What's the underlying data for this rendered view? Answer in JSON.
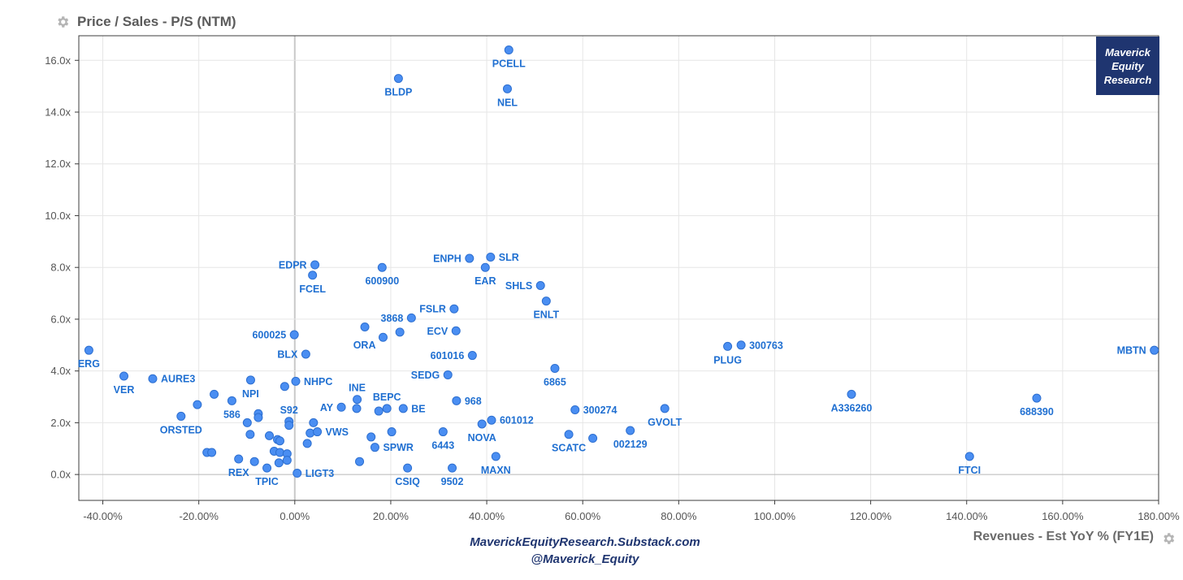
{
  "chart_data": {
    "type": "scatter",
    "title": "Price / Sales - P/S (NTM)",
    "xlabel": "Revenues - Est YoY % (FY1E)",
    "ylabel": "",
    "xlim": [
      -45,
      180
    ],
    "ylim": [
      -1,
      16.95
    ],
    "x_ticks": [
      -40,
      -20,
      0,
      20,
      40,
      60,
      80,
      100,
      120,
      140,
      160,
      180
    ],
    "x_tick_labels": [
      "-40.00%",
      "-20.00%",
      "0.00%",
      "20.00%",
      "40.00%",
      "60.00%",
      "80.00%",
      "100.00%",
      "120.00%",
      "140.00%",
      "160.00%",
      "180.00%"
    ],
    "y_ticks": [
      0,
      2,
      4,
      6,
      8,
      10,
      12,
      14,
      16
    ],
    "y_tick_labels": [
      "0.0x",
      "2.0x",
      "4.0x",
      "6.0x",
      "8.0x",
      "10.0x",
      "12.0x",
      "14.0x",
      "16.0x"
    ],
    "grid": true,
    "point_color": "#4a8ef2",
    "label_color": "#1f6fd1",
    "points": [
      {
        "label": "PCELL",
        "x": 44.6,
        "y": 16.4,
        "pos": "below"
      },
      {
        "label": "BLDP",
        "x": 21.6,
        "y": 15.3,
        "pos": "below"
      },
      {
        "label": "NEL",
        "x": 44.3,
        "y": 14.9,
        "pos": "below"
      },
      {
        "label": "ERG",
        "x": -42.9,
        "y": 4.8,
        "pos": "below"
      },
      {
        "label": "VER",
        "x": -35.6,
        "y": 3.8,
        "pos": "below"
      },
      {
        "label": "AURE3",
        "x": -29.6,
        "y": 3.7,
        "pos": "right"
      },
      {
        "label": "ORSTED",
        "x": -23.7,
        "y": 2.25,
        "pos": "below"
      },
      {
        "label": "",
        "x": -20.3,
        "y": 2.7,
        "pos": "none"
      },
      {
        "label": "",
        "x": -16.8,
        "y": 3.1,
        "pos": "none"
      },
      {
        "label": "",
        "x": -18.3,
        "y": 0.85,
        "pos": "none"
      },
      {
        "label": "",
        "x": -17.3,
        "y": 0.85,
        "pos": "none"
      },
      {
        "label": "NPI",
        "x": -9.2,
        "y": 3.65,
        "pos": "below"
      },
      {
        "label": "586",
        "x": -13.1,
        "y": 2.85,
        "pos": "below"
      },
      {
        "label": "",
        "x": -9.9,
        "y": 2.0,
        "pos": "none"
      },
      {
        "label": "",
        "x": -7.6,
        "y": 2.35,
        "pos": "none"
      },
      {
        "label": "",
        "x": -7.6,
        "y": 2.2,
        "pos": "none"
      },
      {
        "label": "",
        "x": -9.3,
        "y": 1.55,
        "pos": "none"
      },
      {
        "label": "REX",
        "x": -11.7,
        "y": 0.6,
        "pos": "below"
      },
      {
        "label": "",
        "x": -8.4,
        "y": 0.5,
        "pos": "none"
      },
      {
        "label": "TPIC",
        "x": -5.8,
        "y": 0.25,
        "pos": "below"
      },
      {
        "label": "",
        "x": -5.3,
        "y": 1.5,
        "pos": "none"
      },
      {
        "label": "",
        "x": -3.6,
        "y": 1.35,
        "pos": "none"
      },
      {
        "label": "",
        "x": -3.1,
        "y": 1.3,
        "pos": "none"
      },
      {
        "label": "",
        "x": -4.3,
        "y": 0.9,
        "pos": "none"
      },
      {
        "label": "",
        "x": -3.1,
        "y": 0.85,
        "pos": "none"
      },
      {
        "label": "",
        "x": -1.6,
        "y": 0.8,
        "pos": "none"
      },
      {
        "label": "",
        "x": -3.3,
        "y": 0.45,
        "pos": "none"
      },
      {
        "label": "",
        "x": -1.6,
        "y": 0.55,
        "pos": "none"
      },
      {
        "label": "S92",
        "x": -1.2,
        "y": 2.05,
        "pos": "above"
      },
      {
        "label": "",
        "x": -1.2,
        "y": 1.9,
        "pos": "none"
      },
      {
        "label": "",
        "x": -2.1,
        "y": 3.4,
        "pos": "none"
      },
      {
        "label": "NHPC",
        "x": 0.2,
        "y": 3.6,
        "pos": "right"
      },
      {
        "label": "600025",
        "x": -0.1,
        "y": 5.4,
        "pos": "left"
      },
      {
        "label": "BLX",
        "x": 2.3,
        "y": 4.65,
        "pos": "left"
      },
      {
        "label": "LIGT3",
        "x": 0.5,
        "y": 0.05,
        "pos": "right"
      },
      {
        "label": "",
        "x": 2.6,
        "y": 1.2,
        "pos": "none"
      },
      {
        "label": "",
        "x": 3.2,
        "y": 1.6,
        "pos": "none"
      },
      {
        "label": "",
        "x": 3.9,
        "y": 2.0,
        "pos": "none"
      },
      {
        "label": "VWS",
        "x": 4.7,
        "y": 1.65,
        "pos": "right"
      },
      {
        "label": "EDPR",
        "x": 4.2,
        "y": 8.1,
        "pos": "left"
      },
      {
        "label": "FCEL",
        "x": 3.7,
        "y": 7.7,
        "pos": "below"
      },
      {
        "label": "AY",
        "x": 9.7,
        "y": 2.6,
        "pos": "left"
      },
      {
        "label": "INE",
        "x": 13.0,
        "y": 2.9,
        "pos": "above"
      },
      {
        "label": "",
        "x": 12.9,
        "y": 2.55,
        "pos": "none"
      },
      {
        "label": "",
        "x": 13.5,
        "y": 0.5,
        "pos": "none"
      },
      {
        "label": "ORA",
        "x": 18.4,
        "y": 5.3,
        "pos": "left-below"
      },
      {
        "label": "",
        "x": 14.6,
        "y": 5.7,
        "pos": "none"
      },
      {
        "label": "600900",
        "x": 18.2,
        "y": 8.0,
        "pos": "below"
      },
      {
        "label": "",
        "x": 21.9,
        "y": 5.5,
        "pos": "none"
      },
      {
        "label": "3868",
        "x": 24.3,
        "y": 6.05,
        "pos": "left"
      },
      {
        "label": "BEPC",
        "x": 19.2,
        "y": 2.55,
        "pos": "above"
      },
      {
        "label": "",
        "x": 17.5,
        "y": 2.45,
        "pos": "none"
      },
      {
        "label": "BE",
        "x": 22.6,
        "y": 2.55,
        "pos": "right"
      },
      {
        "label": "",
        "x": 15.9,
        "y": 1.45,
        "pos": "none"
      },
      {
        "label": "SPWR",
        "x": 16.7,
        "y": 1.05,
        "pos": "right"
      },
      {
        "label": "",
        "x": 20.2,
        "y": 1.65,
        "pos": "none"
      },
      {
        "label": "CSIQ",
        "x": 23.5,
        "y": 0.25,
        "pos": "below"
      },
      {
        "label": "ENPH",
        "x": 36.4,
        "y": 8.35,
        "pos": "left"
      },
      {
        "label": "SLR",
        "x": 40.8,
        "y": 8.4,
        "pos": "right"
      },
      {
        "label": "EAR",
        "x": 39.7,
        "y": 8.0,
        "pos": "below"
      },
      {
        "label": "FSLR",
        "x": 33.2,
        "y": 6.4,
        "pos": "left"
      },
      {
        "label": "ECV",
        "x": 33.6,
        "y": 5.55,
        "pos": "left"
      },
      {
        "label": "601016",
        "x": 37.0,
        "y": 4.6,
        "pos": "left"
      },
      {
        "label": "SEDG",
        "x": 31.9,
        "y": 3.85,
        "pos": "left"
      },
      {
        "label": "968",
        "x": 33.7,
        "y": 2.85,
        "pos": "right"
      },
      {
        "label": "6443",
        "x": 30.9,
        "y": 1.65,
        "pos": "below"
      },
      {
        "label": "9502",
        "x": 32.8,
        "y": 0.25,
        "pos": "below"
      },
      {
        "label": "NOVA",
        "x": 39.0,
        "y": 1.95,
        "pos": "below"
      },
      {
        "label": "601012",
        "x": 41.0,
        "y": 2.1,
        "pos": "right"
      },
      {
        "label": "MAXN",
        "x": 41.9,
        "y": 0.7,
        "pos": "below"
      },
      {
        "label": "SHLS",
        "x": 51.2,
        "y": 7.3,
        "pos": "left"
      },
      {
        "label": "ENLT",
        "x": 52.4,
        "y": 6.7,
        "pos": "below"
      },
      {
        "label": "6865",
        "x": 54.2,
        "y": 4.1,
        "pos": "below"
      },
      {
        "label": "300274",
        "x": 58.4,
        "y": 2.5,
        "pos": "right"
      },
      {
        "label": "SCATC",
        "x": 57.1,
        "y": 1.55,
        "pos": "below"
      },
      {
        "label": "",
        "x": 62.1,
        "y": 1.4,
        "pos": "none"
      },
      {
        "label": "002129",
        "x": 69.9,
        "y": 1.7,
        "pos": "below"
      },
      {
        "label": "GVOLT",
        "x": 77.1,
        "y": 2.55,
        "pos": "below"
      },
      {
        "label": "PLUG",
        "x": 90.2,
        "y": 4.95,
        "pos": "below"
      },
      {
        "label": "300763",
        "x": 93.0,
        "y": 5.0,
        "pos": "right"
      },
      {
        "label": "A336260",
        "x": 116.0,
        "y": 3.1,
        "pos": "below"
      },
      {
        "label": "FTCI",
        "x": 140.6,
        "y": 0.7,
        "pos": "below"
      },
      {
        "label": "688390",
        "x": 154.6,
        "y": 2.95,
        "pos": "below"
      },
      {
        "label": "MBTN",
        "x": 179.1,
        "y": 4.8,
        "pos": "left"
      }
    ]
  },
  "branding": {
    "box_lines": [
      "Maverick",
      "Equity",
      "Research"
    ],
    "box_color": "#1f3570",
    "footer_line1": "MaverickEquityResearch.Substack.com",
    "footer_line2": "@Maverick_Equity"
  },
  "icons": {
    "title_icon": "gear-icon",
    "axis_icon": "gear-icon"
  }
}
